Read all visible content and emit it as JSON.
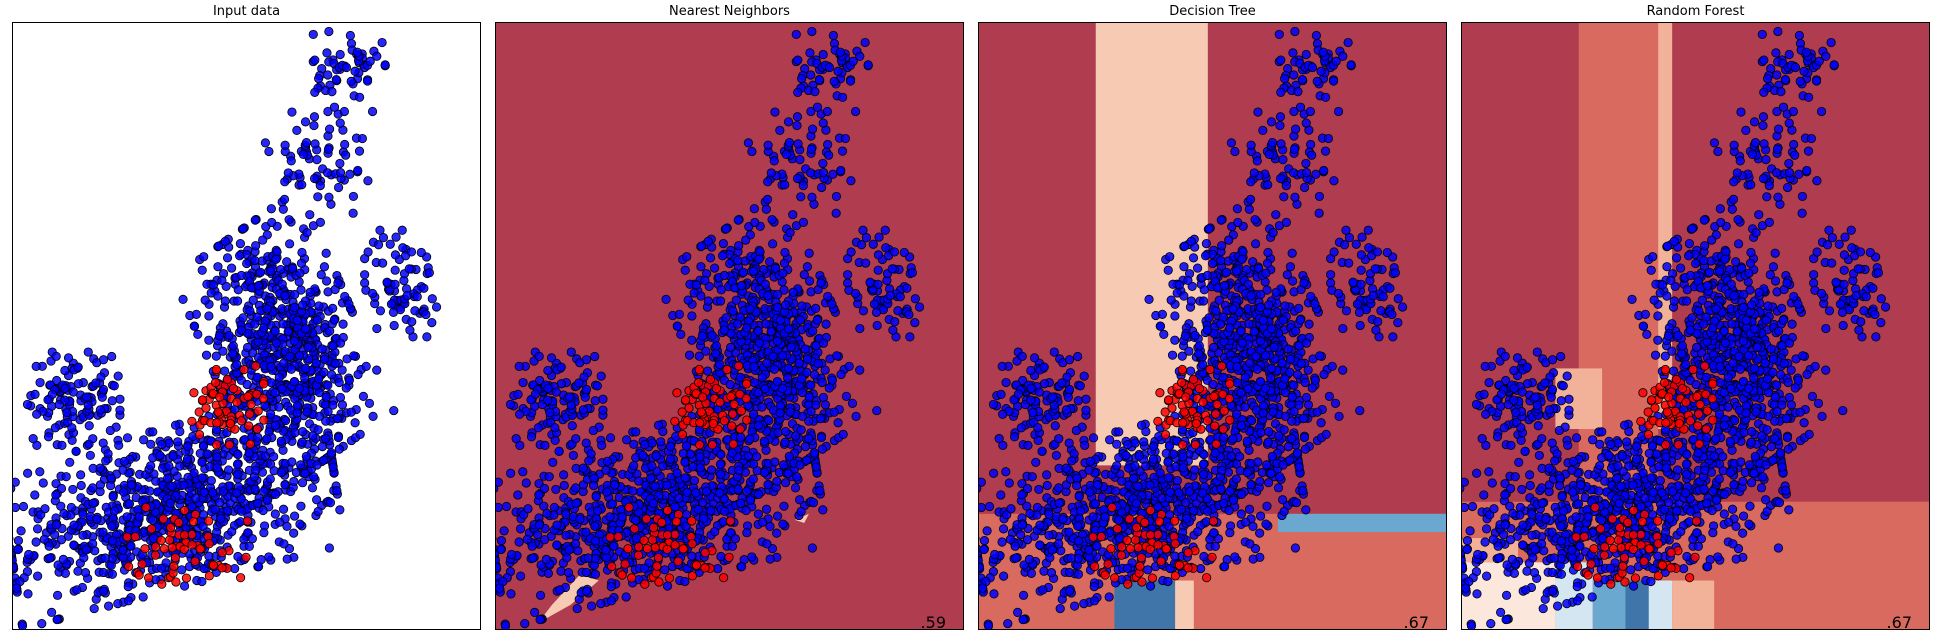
{
  "colors": {
    "class_0_point": "#0000ff",
    "class_1_point": "#ff0000",
    "point_edge": "#000000",
    "region_dark_red": "#b03c50",
    "region_red": "#d96a5f",
    "region_salmon": "#f2b29a",
    "region_peach": "#f7cbb3",
    "region_light": "#fbe7dc",
    "region_pale_blue": "#d4e6f1",
    "region_blue": "#6aa8cf",
    "region_dark_blue": "#3f75a9"
  },
  "chart_data": [
    {
      "type": "scatter",
      "title": "Input data",
      "score": "",
      "background": "none",
      "xlim": [
        0,
        1
      ],
      "ylim": [
        0,
        1
      ],
      "series_note": "two classes",
      "clusters": [
        {
          "cls": 0,
          "cx": 0.34,
          "cy": 0.2,
          "rx": 0.32,
          "ry": 0.12,
          "n": 900,
          "rot": 0.2
        },
        {
          "cls": 0,
          "cx": 0.58,
          "cy": 0.47,
          "rx": 0.14,
          "ry": 0.19,
          "n": 700,
          "rot": 0.5
        },
        {
          "cls": 0,
          "cx": 0.13,
          "cy": 0.38,
          "rx": 0.09,
          "ry": 0.07,
          "n": 120,
          "rot": 0
        },
        {
          "cls": 0,
          "cx": 0.83,
          "cy": 0.57,
          "rx": 0.07,
          "ry": 0.08,
          "n": 80,
          "rot": 0
        },
        {
          "cls": 0,
          "cx": 0.65,
          "cy": 0.77,
          "rx": 0.1,
          "ry": 0.09,
          "n": 70,
          "rot": 0
        },
        {
          "cls": 0,
          "cx": 0.72,
          "cy": 0.92,
          "rx": 0.07,
          "ry": 0.06,
          "n": 60,
          "rot": 0
        },
        {
          "cls": 1,
          "cx": 0.46,
          "cy": 0.37,
          "rx": 0.07,
          "ry": 0.06,
          "n": 70,
          "rot": 0
        },
        {
          "cls": 1,
          "cx": 0.37,
          "cy": 0.14,
          "rx": 0.12,
          "ry": 0.06,
          "n": 60,
          "rot": 0
        }
      ]
    },
    {
      "type": "scatter",
      "title": "Nearest Neighbors",
      "score": ".59",
      "background": "knn",
      "xlim": [
        0,
        1
      ],
      "ylim": [
        0,
        1
      ]
    },
    {
      "type": "scatter",
      "title": "Decision Tree",
      "score": ".67",
      "background": "tree",
      "xlim": [
        0,
        1
      ],
      "ylim": [
        0,
        1
      ]
    },
    {
      "type": "scatter",
      "title": "Random Forest",
      "score": ".67",
      "background": "forest",
      "xlim": [
        0,
        1
      ],
      "ylim": [
        0,
        1
      ]
    }
  ]
}
